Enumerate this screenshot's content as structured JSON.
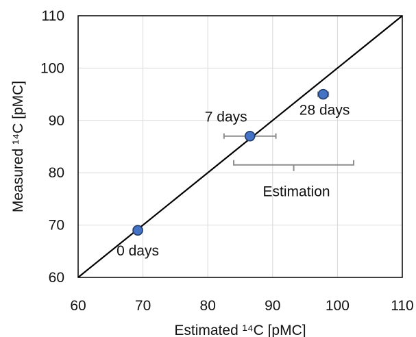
{
  "chart_data": {
    "type": "scatter",
    "xlabel": "Estimated ¹⁴C [pMC]",
    "ylabel": "Measured ¹⁴C [pMC]",
    "xlim": [
      60,
      110
    ],
    "ylim": [
      60,
      110
    ],
    "xticks": [
      60,
      70,
      80,
      90,
      100,
      110
    ],
    "yticks": [
      60,
      70,
      80,
      90,
      100,
      110
    ],
    "grid": true,
    "reference_line": {
      "type": "y=x"
    },
    "points": [
      {
        "label": "0 days",
        "x": 69.2,
        "y": 69.0
      },
      {
        "label": "7 days",
        "x": 86.5,
        "y": 87.0,
        "xerr": [
          82.5,
          90.5
        ]
      },
      {
        "label": "28 days",
        "x": 97.8,
        "y": 95.0,
        "xerr": [
          97.0,
          98.6
        ]
      }
    ],
    "annotations": [
      {
        "text": "Estimation",
        "type": "brace",
        "x_range": [
          84.0,
          102.5
        ],
        "y": 81.5
      }
    ],
    "colors": {
      "marker_fill": "#4472C4",
      "marker_edge": "#1F3864",
      "errorbar": "#8C8C8C",
      "line": "#000000",
      "grid": "#D9D9D9"
    }
  }
}
